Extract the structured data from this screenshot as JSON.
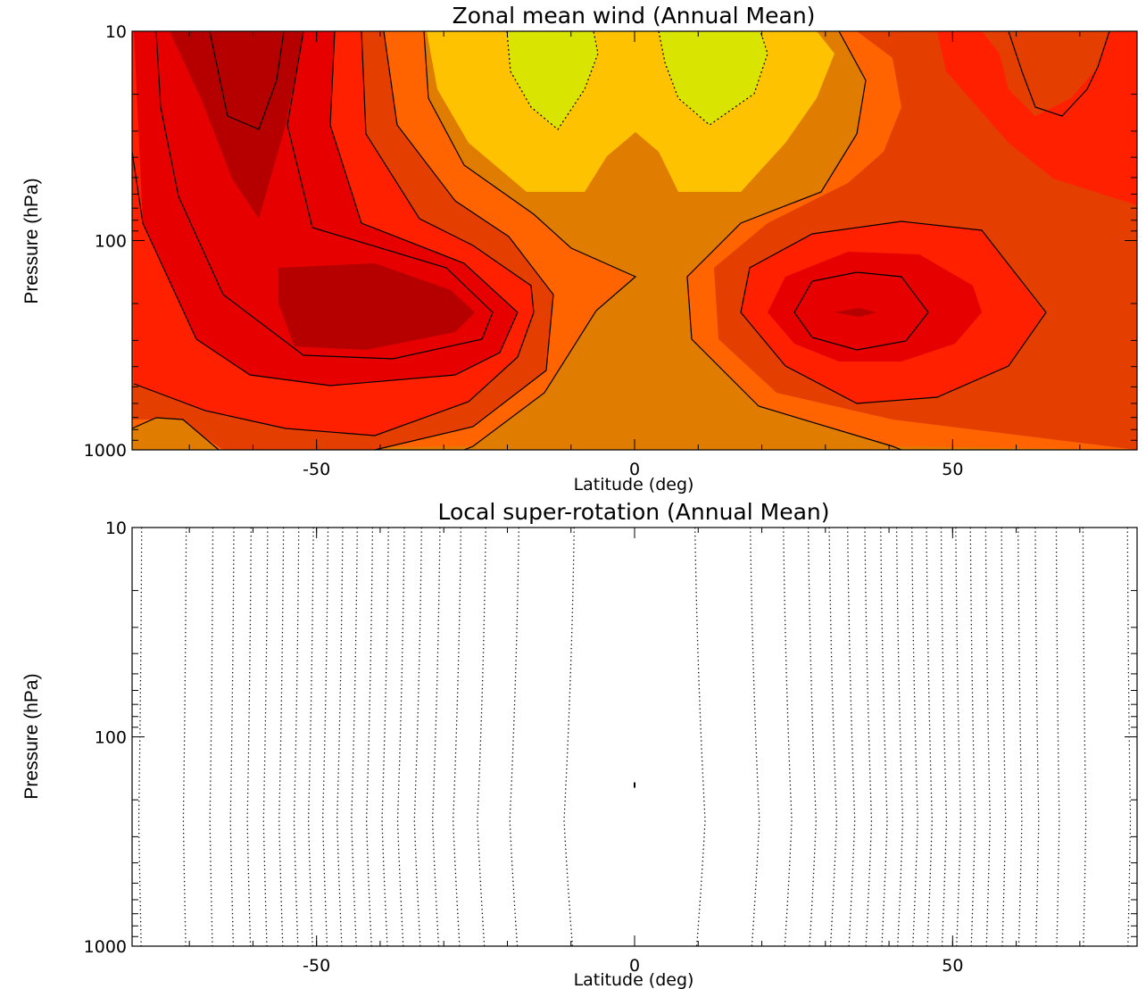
{
  "chart_data": [
    {
      "type": "contour",
      "title": "Zonal mean wind (Annual Mean)",
      "xlabel": "Latitude (deg)",
      "ylabel": "Pressure (hPa)",
      "xlim": [
        -79,
        79
      ],
      "ylim": [
        1000,
        10
      ],
      "yscale": "log",
      "xticks": [
        -50,
        0,
        50
      ],
      "xtick_labels": [
        "-50",
        "0",
        "50"
      ],
      "yticks": [
        10,
        100,
        1000
      ],
      "ytick_labels": [
        "10",
        "100",
        "1000"
      ],
      "filled": true,
      "fill_colors": [
        "#d9e400",
        "#ffc200",
        "#e07c00",
        "#ff6400",
        "#e43e00",
        "#ff2000",
        "#e60000",
        "#b60000"
      ],
      "features": [
        {
          "name": "southern-jet-core",
          "lat": -42,
          "pressure_hPa": 250,
          "level_index": 7
        },
        {
          "name": "southern-stratospheric-maximum",
          "lat": -59,
          "pressure_hPa": 15,
          "level_index": 7
        },
        {
          "name": "northern-jet-core",
          "lat": 36,
          "pressure_hPa": 250,
          "level_index": 7
        },
        {
          "name": "equatorial-stratospheric-minima",
          "lats": [
            -12,
            12
          ],
          "pressure_hPa": 20,
          "level_index": 0
        }
      ]
    },
    {
      "type": "contour",
      "title": "Local super-rotation (Annual Mean)",
      "xlabel": "Latitude (deg)",
      "ylabel": "Pressure (hPa)",
      "xlim": [
        -79,
        79
      ],
      "ylim": [
        1000,
        10
      ],
      "yscale": "log",
      "xticks": [
        -50,
        0,
        50
      ],
      "xtick_labels": [
        "-50",
        "0",
        "50"
      ],
      "yticks": [
        10,
        100,
        1000
      ],
      "ytick_labels": [
        "10",
        "100",
        "1000"
      ],
      "filled": false,
      "line_style": "dotted",
      "contour_latitudes_south": [
        -77.5,
        -70.5,
        -66.3,
        -63,
        -60.3,
        -57.7,
        -55.2,
        -52.8,
        -50.5,
        -48.2,
        -45.9,
        -43.6,
        -41.2,
        -38.7,
        -36.2,
        -33.5,
        -30.6,
        -27.3,
        -23.4,
        -18.2,
        -9.5
      ],
      "contour_latitudes_north": [
        9.5,
        18.2,
        23.4,
        27.3,
        30.6,
        33.5,
        36.2,
        38.7,
        41.2,
        43.6,
        45.9,
        48.2,
        50.5,
        52.8,
        55.2,
        57.7,
        60.3,
        63,
        66.3,
        70.5,
        77.5
      ],
      "bulge_pressure_hPa": 250,
      "marker": {
        "lat": 0,
        "pressure_hPa": 170
      }
    }
  ]
}
